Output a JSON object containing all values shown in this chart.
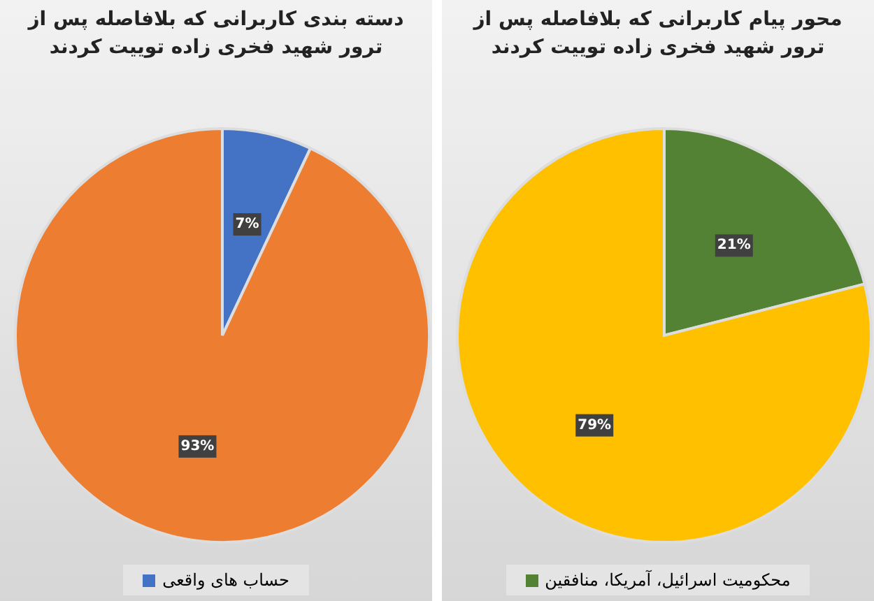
{
  "chart_data": [
    {
      "type": "pie",
      "title": "دسته بندی کاربرانی که بلافاصله پس از ترور شهید فخری زاده توییت کردند",
      "categories": [
        "حساب های واقعی",
        null
      ],
      "values": [
        7,
        93
      ],
      "colors": [
        "#4472c4",
        "#ed7d31"
      ],
      "value_labels": [
        "7%",
        "93%"
      ],
      "legend": "bottom"
    },
    {
      "type": "pie",
      "title": "محور پیام کاربرانی که بلافاصله پس از ترور شهید فخری زاده توییت کردند",
      "categories": [
        "محکومیت اسرائیل، آمریکا، منافقین",
        null
      ],
      "values": [
        21,
        79
      ],
      "colors": [
        "#548235",
        "#ffc000"
      ],
      "value_labels": [
        "21%",
        "79%"
      ],
      "legend": "bottom"
    }
  ]
}
